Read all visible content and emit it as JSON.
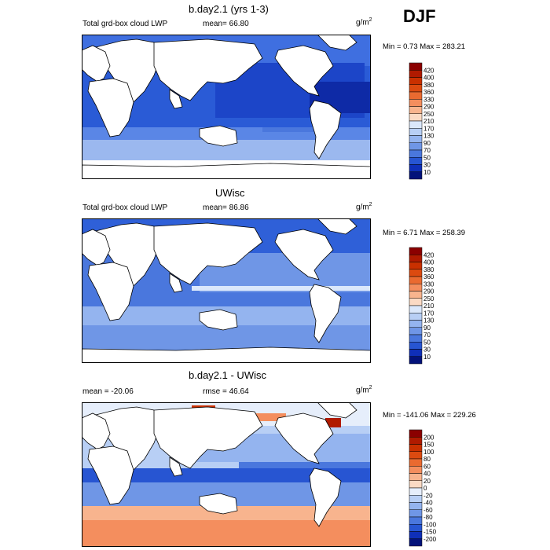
{
  "season": "DJF",
  "units_base": "g/m",
  "units_exp": "2",
  "panels": [
    {
      "title": "b.day2.1 (yrs 1-3)",
      "left_label": "Total grd-box cloud LWP",
      "center_label": "mean=  66.80",
      "minmax": "Min =   0.73 Max = 283.21",
      "colorbar": {
        "levels": [
          "420",
          "400",
          "380",
          "360",
          "330",
          "290",
          "250",
          "210",
          "170",
          "130",
          "90",
          "70",
          "50",
          "30",
          "10"
        ],
        "colors": [
          "#8b0000",
          "#b01a00",
          "#c93000",
          "#dc4a10",
          "#ea6a30",
          "#f48e5e",
          "#f8b48e",
          "#fbdac4",
          "#dbe8fb",
          "#b8cff5",
          "#94b4ef",
          "#6f96e6",
          "#4a77dd",
          "#2755d2",
          "#0f2fb8",
          "#03127a"
        ]
      }
    },
    {
      "title": "UWisc",
      "left_label": "Total grd-box cloud LWP",
      "center_label": "mean=  86.86",
      "minmax": "Min =   6.71 Max = 258.39",
      "colorbar": {
        "levels": [
          "420",
          "400",
          "380",
          "360",
          "330",
          "290",
          "250",
          "210",
          "170",
          "130",
          "90",
          "70",
          "50",
          "30",
          "10"
        ],
        "colors": [
          "#8b0000",
          "#b01a00",
          "#c93000",
          "#dc4a10",
          "#ea6a30",
          "#f48e5e",
          "#f8b48e",
          "#fbdac4",
          "#dbe8fb",
          "#b8cff5",
          "#94b4ef",
          "#6f96e6",
          "#4a77dd",
          "#2755d2",
          "#0f2fb8",
          "#03127a"
        ]
      }
    },
    {
      "title": "b.day2.1 - UWisc",
      "left_label": "mean = -20.06",
      "center_label": "rmse =  46.64",
      "minmax": "Min = -141.06 Max = 229.26",
      "colorbar": {
        "levels": [
          "200",
          "150",
          "100",
          "80",
          "60",
          "40",
          "20",
          "0",
          "-20",
          "-40",
          "-60",
          "-80",
          "-100",
          "-150",
          "-200"
        ],
        "colors": [
          "#8b0000",
          "#b01a00",
          "#c93000",
          "#dc4a10",
          "#ea6a30",
          "#f48e5e",
          "#f8b48e",
          "#fbdac4",
          "#e6eefb",
          "#b8cff5",
          "#94b4ef",
          "#6f96e6",
          "#4a77dd",
          "#2755d2",
          "#0f2fb8",
          "#03127a"
        ]
      }
    }
  ]
}
